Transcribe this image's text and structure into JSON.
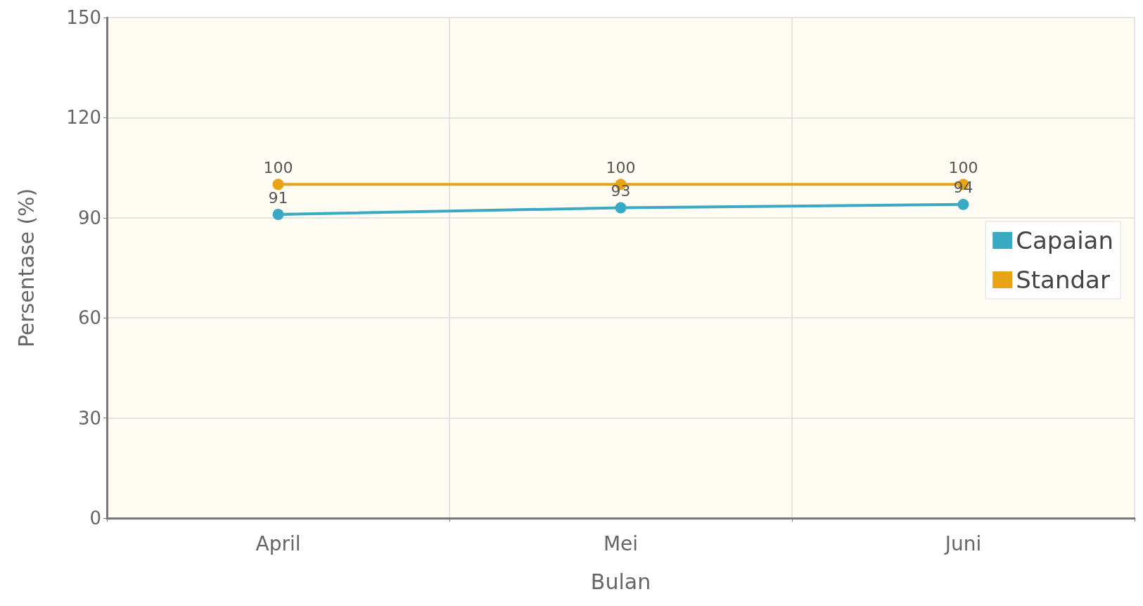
{
  "chart_data": {
    "type": "line",
    "xlabel": "Bulan",
    "ylabel": "Persentase (%)",
    "categories": [
      "April",
      "Mei",
      "Juni"
    ],
    "series": [
      {
        "name": "Capaian",
        "color": "#3aaac4",
        "values": [
          91,
          93,
          94
        ]
      },
      {
        "name": "Standar",
        "color": "#e8a317",
        "values": [
          100,
          100,
          100
        ]
      }
    ],
    "ylim": [
      0,
      150
    ],
    "yticks": [
      0,
      30,
      60,
      90,
      120,
      150
    ],
    "grid": true,
    "legend": "right",
    "marker": "circle",
    "line_style": "solid",
    "data_labels": true
  }
}
